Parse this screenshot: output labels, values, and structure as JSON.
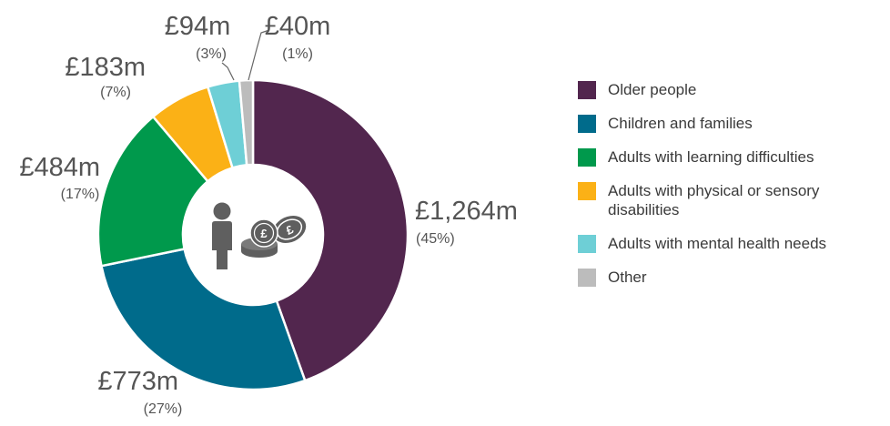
{
  "chart_data": {
    "type": "pie",
    "variant": "donut",
    "unit": "£m",
    "categories": [
      "Older people",
      "Children and families",
      "Adults with learning difficulties",
      "Adults with physical or sensory disabilities",
      "Adults with mental health needs",
      "Other"
    ],
    "values": [
      1264,
      773,
      484,
      183,
      94,
      40
    ],
    "value_labels": [
      "£1,264m",
      "£773m",
      "£484m",
      "£183m",
      "£94m",
      "£40m"
    ],
    "percent_labels": [
      "(45%)",
      "(27%)",
      "(17%)",
      "(7%)",
      "(3%)",
      "(1%)"
    ],
    "colors": [
      "#52264e",
      "#006b8b",
      "#00994c",
      "#fbb116",
      "#6ecfd6",
      "#bcbcbc"
    ],
    "center_icon": "person-with-pound-coins-icon",
    "legend_position": "right"
  }
}
